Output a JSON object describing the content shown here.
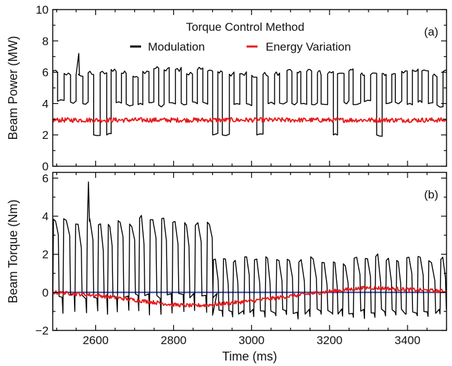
{
  "chart_data": [
    {
      "type": "line",
      "panel_label": "(a)",
      "ylabel": "Beam Power (MW)",
      "ylim": [
        0,
        10
      ],
      "xlim": [
        2490,
        3500
      ],
      "yticks": [
        0,
        2,
        4,
        6,
        8,
        10
      ],
      "xticks": [
        2600,
        2800,
        3000,
        3200,
        3400
      ],
      "show_x_tick_labels": false,
      "legend": {
        "title": "Torque Control Method",
        "placement": "top-center"
      },
      "series": [
        {
          "name": "Modulation",
          "color": "#000000",
          "pattern": "square-wave",
          "base_level": 4.0,
          "high_level": 6.0,
          "low_dips": [
            2580,
            2600,
            2890,
            2920,
            3000,
            3200,
            3300
          ],
          "low_level": 2.0,
          "spike": {
            "x": 2545,
            "y": 7.2
          },
          "period_ms": 28
        },
        {
          "name": "Energy Variation",
          "color": "#e41a1c",
          "pattern": "flat-noisy",
          "level": 2.95,
          "ripple": 0.15
        }
      ]
    },
    {
      "type": "line",
      "panel_label": "(b)",
      "ylabel": "Beam Torque (Nm)",
      "xlabel": "Time (ms)",
      "ylim": [
        -2,
        6.3
      ],
      "xlim": [
        2490,
        3500
      ],
      "yticks": [
        -2,
        0,
        2,
        4,
        6
      ],
      "xticks": [
        2600,
        2800,
        3000,
        3200,
        3400
      ],
      "ytick_labels": [
        "−2",
        "0",
        "2",
        "4",
        "6"
      ],
      "xtick_labels": [
        "2600",
        "2800",
        "3000",
        "3200",
        "3400"
      ],
      "reference_line": {
        "y": 0,
        "color": "#2b3fa8"
      },
      "series": [
        {
          "name": "Modulation",
          "color": "#000000",
          "pattern": "square-wave",
          "segments": [
            {
              "x_start": 2490,
              "x_end": 2900,
              "high": 3.7,
              "low": -0.2,
              "spike_low": -1.2
            },
            {
              "x_start": 2900,
              "x_end": 3500,
              "high": 1.7,
              "low": -1.0,
              "spike_low": -1.4
            }
          ],
          "spike": {
            "x": 2565,
            "y": 5.8
          }
        },
        {
          "name": "Energy Variation",
          "color": "#e41a1c",
          "pattern": "smooth-noisy",
          "x": [
            2490,
            2600,
            2700,
            2800,
            2850,
            2900,
            3000,
            3100,
            3200,
            3300,
            3400,
            3500
          ],
          "y": [
            0.0,
            -0.15,
            -0.4,
            -0.65,
            -0.7,
            -0.65,
            -0.45,
            -0.2,
            0.05,
            0.25,
            0.15,
            0.05
          ]
        }
      ]
    }
  ]
}
